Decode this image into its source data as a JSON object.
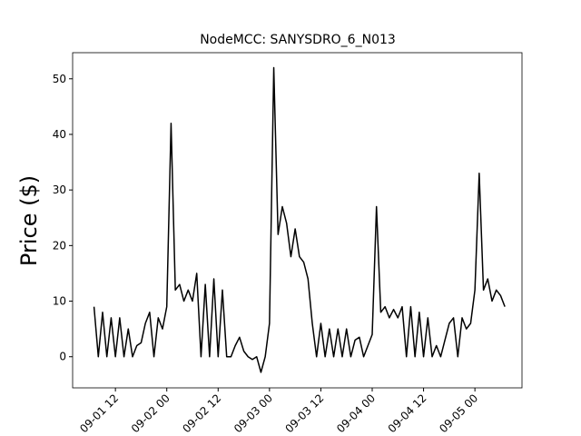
{
  "chart_data": {
    "type": "line",
    "title": "NodeMCC: SANYSDRO_6_N013",
    "y_label": "Price ($)",
    "x": [
      "09-01 07",
      "09-01 08",
      "09-01 09",
      "09-01 10",
      "09-01 11",
      "09-01 12",
      "09-01 13",
      "09-01 14",
      "09-01 15",
      "09-01 16",
      "09-01 17",
      "09-01 18",
      "09-01 19",
      "09-01 20",
      "09-01 21",
      "09-01 22",
      "09-01 23",
      "09-02 00",
      "09-02 01",
      "09-02 02",
      "09-02 03",
      "09-02 04",
      "09-02 05",
      "09-02 06",
      "09-02 07",
      "09-02 08",
      "09-02 09",
      "09-02 10",
      "09-02 11",
      "09-02 12",
      "09-02 13",
      "09-02 14",
      "09-02 15",
      "09-02 16",
      "09-02 17",
      "09-02 18",
      "09-02 19",
      "09-02 20",
      "09-02 21",
      "09-02 22",
      "09-02 23",
      "09-03 00",
      "09-03 01",
      "09-03 02",
      "09-03 03",
      "09-03 04",
      "09-03 05",
      "09-03 06",
      "09-03 07",
      "09-03 08",
      "09-03 09",
      "09-03 10",
      "09-03 11",
      "09-03 12",
      "09-03 13",
      "09-03 14",
      "09-03 15",
      "09-03 16",
      "09-03 17",
      "09-03 18",
      "09-03 19",
      "09-03 20",
      "09-03 21",
      "09-03 22",
      "09-03 23",
      "09-04 00",
      "09-04 01",
      "09-04 02",
      "09-04 03",
      "09-04 04",
      "09-04 05",
      "09-04 06",
      "09-04 07",
      "09-04 08",
      "09-04 09",
      "09-04 10",
      "09-04 11",
      "09-04 12",
      "09-04 13",
      "09-04 14",
      "09-04 15",
      "09-04 16",
      "09-04 17",
      "09-04 18",
      "09-04 19",
      "09-04 20",
      "09-04 21",
      "09-04 22",
      "09-04 23",
      "09-05 00",
      "09-05 01",
      "09-05 02",
      "09-05 03",
      "09-05 04",
      "09-05 05",
      "09-05 06",
      "09-05 07"
    ],
    "series": [
      {
        "name": "Price",
        "color": "#000000",
        "values": [
          9,
          0,
          8,
          0,
          7,
          0,
          7,
          0,
          5,
          0,
          2,
          2.5,
          6,
          8,
          0,
          7,
          5,
          9,
          42,
          12,
          13,
          10,
          12,
          10,
          15,
          0,
          13,
          0,
          14,
          0,
          12,
          0,
          0,
          2,
          3.5,
          1,
          0,
          -0.5,
          0,
          -2.8,
          0,
          6,
          52,
          22,
          27,
          24,
          18,
          23,
          18,
          17,
          14,
          6,
          0,
          6,
          0,
          5,
          0,
          5,
          0,
          5,
          0,
          3,
          3.5,
          0,
          2,
          4,
          27,
          8,
          9,
          7,
          8.5,
          7,
          9,
          0,
          9,
          0,
          8,
          0,
          7,
          0,
          2,
          0,
          3,
          6,
          7,
          0,
          7,
          5,
          6,
          12,
          33,
          12,
          14,
          10,
          12,
          11,
          9
        ]
      }
    ],
    "xlim": [
      "09-01 02",
      "09-05 11"
    ],
    "xticks": [
      "09-01 12",
      "09-02 00",
      "09-02 12",
      "09-03 00",
      "09-03 12",
      "09-04 00",
      "09-04 12",
      "09-05 00"
    ],
    "ylim": [
      -5.6,
      54.7
    ],
    "yticks": [
      0,
      10,
      20,
      30,
      40,
      50
    ]
  }
}
